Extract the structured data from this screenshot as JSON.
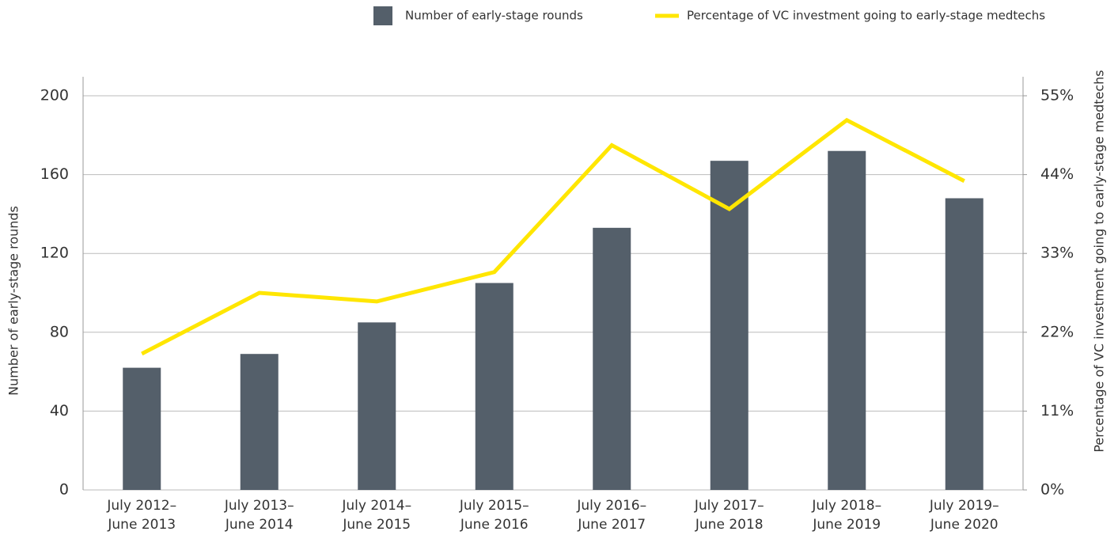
{
  "chart_data": {
    "type": "bar_line",
    "categories": [
      [
        "July 2012–",
        "June 2013"
      ],
      [
        "July 2013–",
        "June 2014"
      ],
      [
        "July 2014–",
        "June 2015"
      ],
      [
        "July 2015–",
        "June 2016"
      ],
      [
        "July 2016–",
        "June 2017"
      ],
      [
        "July 2017–",
        "June 2018"
      ],
      [
        "July 2018–",
        "June 2019"
      ],
      [
        "July 2019–",
        "June 2020"
      ]
    ],
    "series": [
      {
        "name": "Number of early-stage rounds",
        "color": "#545f6a",
        "type": "bar",
        "values": [
          62,
          69,
          85,
          105,
          133,
          167,
          172,
          148
        ]
      },
      {
        "name": "Percentage of VC investment going to early-stage medtechs",
        "color": "#ffe600",
        "type": "line",
        "axis": "y2",
        "values": [
          19,
          27.5,
          26.3,
          30.4,
          48.1,
          39.2,
          51.6,
          43.1
        ]
      }
    ],
    "ylabel": "Number of early-stage rounds",
    "y2label": "Percentage of VC investment going to early-stage medtechs",
    "ylim": [
      0,
      200
    ],
    "yticks": [
      0,
      40,
      80,
      120,
      160,
      200
    ],
    "y2lim": [
      0,
      55
    ],
    "y2ticks": [
      {
        "value": 0,
        "label": "0%"
      },
      {
        "value": 11,
        "label": "11%"
      },
      {
        "value": 22,
        "label": "22%"
      },
      {
        "value": 33,
        "label": "33%"
      },
      {
        "value": 44,
        "label": "44%"
      },
      {
        "value": 55,
        "label": "55%"
      }
    ],
    "grid": true,
    "legend": "top"
  }
}
